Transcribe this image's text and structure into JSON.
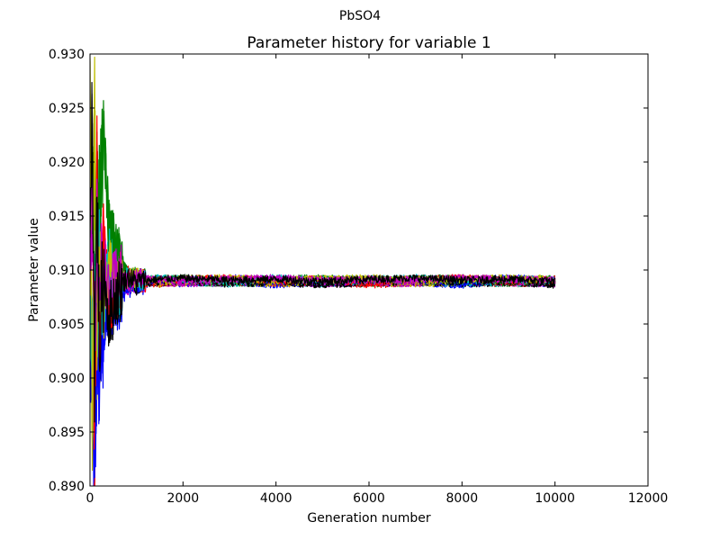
{
  "chart_data": {
    "type": "line",
    "suptitle": "PbSO4",
    "title": "Parameter history for variable 1",
    "xlabel": "Generation number",
    "ylabel": "Parameter value",
    "xlim": [
      0,
      12000
    ],
    "ylim": [
      0.89,
      0.93
    ],
    "xticks": [
      0,
      2000,
      4000,
      6000,
      8000,
      10000,
      12000
    ],
    "xtick_labels": [
      "0",
      "2000",
      "4000",
      "6000",
      "8000",
      "10000",
      "12000"
    ],
    "yticks": [
      0.89,
      0.895,
      0.9,
      0.905,
      0.91,
      0.915,
      0.92,
      0.925,
      0.93
    ],
    "ytick_labels": [
      "0.890",
      "0.895",
      "0.900",
      "0.905",
      "0.910",
      "0.915",
      "0.920",
      "0.925",
      "0.930"
    ],
    "grid": false,
    "legend": "none",
    "convergence_value": 0.909,
    "generations": 10000,
    "series_colors": [
      "#0000ff",
      "#008000",
      "#ff0000",
      "#00bfbf",
      "#bfbf00",
      "#bf00bf",
      "#000000"
    ],
    "series": [
      {
        "color": "#0000ff",
        "x": [
          0,
          50,
          100,
          150,
          200,
          300,
          400,
          600,
          800,
          1000,
          1500,
          2000,
          3000,
          4000,
          5000,
          6000,
          7000,
          8000,
          9000,
          10000
        ],
        "y": [
          0.905,
          0.899,
          0.8915,
          0.903,
          0.9005,
          0.905,
          0.9065,
          0.9075,
          0.9085,
          0.9088,
          0.909,
          0.9089,
          0.9091,
          0.9088,
          0.909,
          0.9089,
          0.909,
          0.9088,
          0.9091,
          0.9089
        ]
      },
      {
        "color": "#008000",
        "x": [
          0,
          50,
          100,
          150,
          200,
          300,
          400,
          600,
          800,
          1000,
          1500,
          2000,
          3000,
          4000,
          5000,
          6000,
          7000,
          8000,
          9000,
          10000
        ],
        "y": [
          0.912,
          0.918,
          0.915,
          0.914,
          0.916,
          0.922,
          0.914,
          0.911,
          0.9095,
          0.9092,
          0.909,
          0.9091,
          0.9089,
          0.909,
          0.9091,
          0.9089,
          0.909,
          0.9091,
          0.9089,
          0.909
        ]
      },
      {
        "color": "#ff0000",
        "x": [
          0,
          50,
          100,
          150,
          200,
          300,
          400,
          600,
          800,
          1000,
          1500,
          2000,
          3000,
          4000,
          5000,
          6000,
          7000,
          8000,
          9000,
          10000
        ],
        "y": [
          0.91,
          0.922,
          0.892,
          0.92,
          0.905,
          0.912,
          0.907,
          0.9085,
          0.9093,
          0.909,
          0.9089,
          0.909,
          0.9091,
          0.9089,
          0.909,
          0.9088,
          0.909,
          0.9091,
          0.9089,
          0.909
        ]
      },
      {
        "color": "#00bfbf",
        "x": [
          0,
          50,
          100,
          150,
          200,
          300,
          400,
          600,
          800,
          1000,
          1500,
          2000,
          3000,
          4000,
          5000,
          6000,
          7000,
          8000,
          9000,
          10000
        ],
        "y": [
          0.909,
          0.904,
          0.913,
          0.906,
          0.911,
          0.9065,
          0.911,
          0.9082,
          0.9094,
          0.9089,
          0.9091,
          0.909,
          0.9089,
          0.9091,
          0.9089,
          0.909,
          0.9091,
          0.9089,
          0.909,
          0.9089
        ]
      },
      {
        "color": "#bfbf00",
        "x": [
          0,
          50,
          100,
          150,
          200,
          300,
          400,
          600,
          800,
          1000,
          1500,
          2000,
          3000,
          4000,
          5000,
          6000,
          7000,
          8000,
          9000,
          10000
        ],
        "y": [
          0.926,
          0.8935,
          0.9265,
          0.9,
          0.912,
          0.9055,
          0.91,
          0.9088,
          0.909,
          0.9091,
          0.9089,
          0.909,
          0.9091,
          0.9089,
          0.909,
          0.9091,
          0.9089,
          0.909,
          0.9091,
          0.909
        ]
      },
      {
        "color": "#bf00bf",
        "x": [
          0,
          50,
          100,
          150,
          200,
          300,
          400,
          600,
          800,
          1000,
          1500,
          2000,
          3000,
          4000,
          5000,
          6000,
          7000,
          8000,
          9000,
          10000
        ],
        "y": [
          0.907,
          0.915,
          0.902,
          0.913,
          0.908,
          0.911,
          0.9075,
          0.9095,
          0.9087,
          0.9091,
          0.909,
          0.9089,
          0.909,
          0.9091,
          0.9089,
          0.909,
          0.9089,
          0.9091,
          0.909,
          0.9089
        ]
      },
      {
        "color": "#000000",
        "x": [
          0,
          50,
          100,
          150,
          200,
          300,
          400,
          600,
          800,
          1000,
          1500,
          2000,
          3000,
          4000,
          5000,
          6000,
          7000,
          8000,
          9000,
          10000
        ],
        "y": [
          0.911,
          0.9255,
          0.9,
          0.918,
          0.903,
          0.91,
          0.9055,
          0.908,
          0.9092,
          0.9088,
          0.909,
          0.9091,
          0.9089,
          0.909,
          0.9088,
          0.909,
          0.9091,
          0.9089,
          0.909,
          0.9088
        ]
      }
    ]
  }
}
